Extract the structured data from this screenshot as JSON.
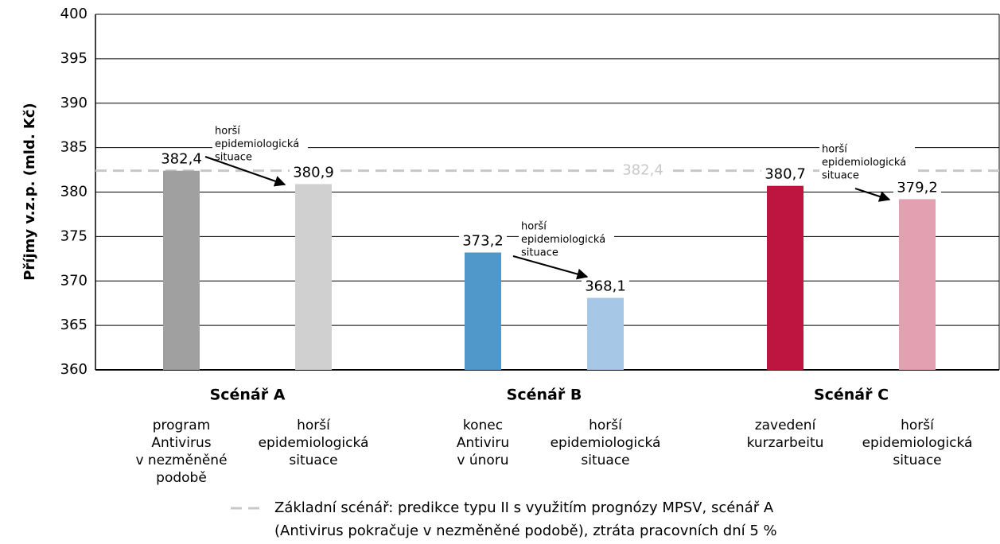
{
  "chart_data": {
    "type": "bar",
    "y_label": "Příjmy v.z.p. (mld. Kč)",
    "ylim": [
      360,
      400
    ],
    "yticks": [
      360,
      365,
      370,
      375,
      380,
      385,
      390,
      395,
      400
    ],
    "grid": true,
    "groups": [
      "Scénář A",
      "Scénář B",
      "Scénář C"
    ],
    "categories": [
      [
        "program",
        "Antivirus",
        "v nezměněné",
        "podobě"
      ],
      [
        "horší",
        "epidemiologická",
        "situace"
      ],
      [
        "konec",
        "Antiviru",
        "v únoru"
      ],
      [
        "horší",
        "epidemiologická",
        "situace"
      ],
      [
        "zavedení",
        "kurzarbeitu"
      ],
      [
        "horší",
        "epidemiologická",
        "situace"
      ]
    ],
    "values": [
      382.4,
      380.9,
      373.2,
      368.1,
      380.7,
      379.2
    ],
    "value_labels": [
      "382,4",
      "380,9",
      "373,2",
      "368,1",
      "380,7",
      "379,2"
    ],
    "colors": [
      "#a0a0a0",
      "#d0d0d0",
      "#4f98c9",
      "#a6c8e6",
      "#be1540",
      "#e2a0b0"
    ],
    "annotations": [
      [
        "horší",
        "epidemiologická",
        "situace"
      ],
      [
        "horší",
        "epidemiologická",
        "situace"
      ],
      [
        "horší",
        "epidemiologická",
        "situace"
      ]
    ],
    "reference_line": {
      "value": 382.4,
      "label": "382,4",
      "color": "#c8c8c8",
      "legend": [
        "Základní scénář: predikce typu II s využitím prognózy MPSV, scénář A",
        "(Antivirus pokračuje v nezměněné podobě), ztráta pracovních dní 5 %"
      ]
    }
  }
}
